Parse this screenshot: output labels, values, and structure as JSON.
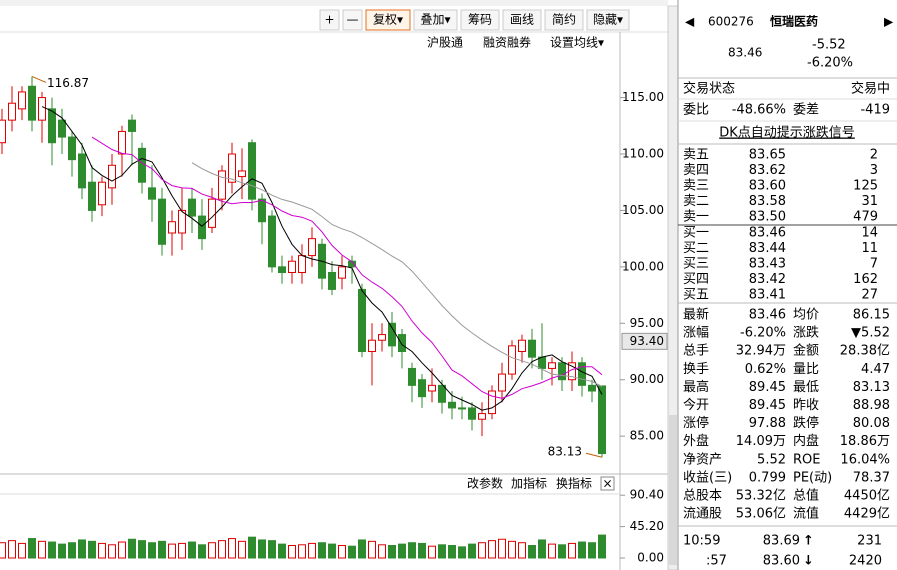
{
  "toolbar": {
    "buttons": [
      "+",
      "—",
      "复权▾",
      "叠加▾",
      "筹码",
      "画线",
      "简约",
      "隐藏▾"
    ],
    "links": [
      "沪股通",
      "融资融券",
      "设置均线▾"
    ]
  },
  "chart_data": {
    "type": "candlestick",
    "candles": {
      "open": [
        111,
        113,
        114,
        116,
        113,
        114,
        113,
        111.5,
        110,
        107.5,
        105.5,
        107,
        110,
        113,
        110.5,
        107,
        106,
        103,
        103,
        106,
        104.5,
        103.5,
        106,
        107.5,
        108,
        111,
        106,
        104.5,
        100,
        99.5,
        99.5,
        101,
        102,
        99.5,
        99,
        100.5,
        98,
        92.5,
        93.5,
        95,
        94,
        91,
        90,
        89,
        89.5,
        88,
        87.5,
        87.5,
        86.5,
        87,
        89,
        90.5,
        92.5,
        93.5,
        92,
        91,
        91.5,
        90,
        91.5,
        89.5,
        89.45
      ],
      "high": [
        114,
        116,
        116,
        116.87,
        115.5,
        115,
        114,
        112,
        111,
        109,
        108,
        110,
        112.5,
        113.5,
        111,
        109,
        107,
        105,
        107,
        107,
        106,
        107,
        109,
        111,
        110.5,
        111.3,
        106.5,
        105,
        101,
        101,
        102,
        103.5,
        102.5,
        100.5,
        101,
        101,
        98.5,
        95,
        95,
        96,
        94.5,
        91.5,
        90.5,
        91,
        90,
        89,
        88.5,
        88,
        88,
        89.5,
        91.5,
        93.5,
        94,
        94.5,
        95,
        92,
        92,
        92.5,
        92,
        90,
        89.45
      ],
      "low": [
        110,
        112,
        113,
        112,
        111,
        109,
        110,
        108,
        106,
        104,
        104.5,
        105.5,
        108,
        109,
        106.5,
        104,
        101,
        101,
        101.5,
        103,
        101.5,
        103,
        105,
        106.5,
        106,
        105,
        102,
        99.5,
        98.5,
        98.5,
        98.5,
        100,
        98,
        97.5,
        98,
        98.5,
        92,
        89.5,
        92.5,
        92,
        91,
        88,
        87.5,
        88,
        87,
        86.5,
        86.5,
        85.5,
        85,
        86.5,
        88,
        90,
        91.5,
        91,
        90,
        89.5,
        89,
        89,
        88.5,
        88,
        83.13
      ],
      "close": [
        113,
        114.5,
        115.5,
        113,
        115,
        111,
        111.5,
        109.5,
        107,
        105,
        107.5,
        109,
        112,
        112,
        107.5,
        106,
        102,
        104,
        105,
        104.5,
        102.5,
        106,
        108.5,
        110,
        108.5,
        106,
        104,
        100,
        99.5,
        100.5,
        101,
        102.5,
        99,
        98,
        100,
        100,
        92.5,
        93.5,
        94,
        93,
        92.5,
        89.5,
        88.5,
        89.5,
        88,
        87.5,
        87.5,
        86.5,
        87,
        89,
        90.5,
        93,
        93.5,
        92,
        91,
        91.5,
        90,
        91.5,
        89.5,
        89,
        83.46
      ]
    },
    "up_color": "#e00000",
    "down_color": "#2e8b2e",
    "moving_averages": [
      {
        "period": 5,
        "color": "#000000"
      },
      {
        "period": 10,
        "color": "#d000d0"
      },
      {
        "period": 20,
        "color": "#999999"
      }
    ],
    "ylim": [
      82,
      117
    ],
    "yticks": [
      {
        "value": 85,
        "label": "85.00"
      },
      {
        "value": 90,
        "label": "90.00"
      },
      {
        "value": 95,
        "label": "95.00"
      },
      {
        "value": 100,
        "label": "100.00"
      },
      {
        "value": 105,
        "label": "105.00"
      },
      {
        "value": 110,
        "label": "110.00"
      },
      {
        "value": 115,
        "label": "115.00"
      }
    ],
    "high_annotation": 116.87,
    "low_annotation": 83.13,
    "cursor": {
      "value": 93.4,
      "label": "93.40"
    }
  },
  "volume": {
    "values": [
      22,
      25,
      21,
      28,
      24,
      23,
      20,
      22,
      26,
      24,
      21,
      19,
      23,
      27,
      25,
      22,
      24,
      20,
      21,
      23,
      19,
      22,
      25,
      28,
      24,
      30,
      26,
      25,
      20,
      18,
      19,
      21,
      22,
      20,
      18,
      17,
      26,
      24,
      19,
      18,
      20,
      22,
      21,
      17,
      19,
      18,
      16,
      20,
      22,
      25,
      27,
      24,
      22,
      18,
      26,
      20,
      19,
      21,
      23,
      22,
      33
    ],
    "ylim": [
      0,
      100.8
    ],
    "yticks": [
      {
        "value": 0,
        "label": "0.00"
      },
      {
        "value": 45.2,
        "label": "45.20"
      },
      {
        "value": 90.4,
        "label": "90.40"
      }
    ],
    "buttons": [
      "改参数",
      "加指标",
      "换指标",
      "×"
    ]
  },
  "quote": {
    "code": "600276",
    "name": "恒瑞医药",
    "price": "83.46",
    "change": "-5.52",
    "change_pct": "-6.20%",
    "status_label": "交易状态",
    "status": "交易中",
    "ratio_label": "委比",
    "ratio": "-48.66%",
    "diff_label": "委差",
    "diff": "-419",
    "signal_link": "DK点自动提示涨跌信号",
    "asks": [
      {
        "label": "卖五",
        "price": "83.65",
        "volume": "2"
      },
      {
        "label": "卖四",
        "price": "83.62",
        "volume": "3"
      },
      {
        "label": "卖三",
        "price": "83.60",
        "volume": "125"
      },
      {
        "label": "卖二",
        "price": "83.58",
        "volume": "31"
      },
      {
        "label": "卖一",
        "price": "83.50",
        "volume": "479"
      }
    ],
    "bids": [
      {
        "label": "买一",
        "price": "83.46",
        "volume": "14"
      },
      {
        "label": "买二",
        "price": "83.44",
        "volume": "11"
      },
      {
        "label": "买三",
        "price": "83.43",
        "volume": "7"
      },
      {
        "label": "买四",
        "price": "83.42",
        "volume": "162"
      },
      {
        "label": "买五",
        "price": "83.41",
        "volume": "27"
      }
    ],
    "stats": [
      {
        "cells": [
          "最新",
          "83.46",
          "均价",
          "86.15"
        ],
        "colors": [
          "#008a00",
          "#000000"
        ]
      },
      {
        "cells": [
          "涨幅",
          "-6.20%",
          "涨跌",
          "▼5.52"
        ],
        "colors": [
          "#008a00",
          "#008a00"
        ]
      },
      {
        "cells": [
          "总手",
          "32.94万",
          "金额",
          "28.38亿"
        ],
        "colors": [
          "#000000",
          "#0066cc"
        ]
      },
      {
        "cells": [
          "换手",
          "0.62%",
          "量比",
          "4.47"
        ],
        "colors": [
          "#000000",
          "#e00000"
        ]
      },
      {
        "cells": [
          "最高",
          "89.45",
          "最低",
          "83.13"
        ],
        "colors": [
          "#e00000",
          "#008a00"
        ]
      },
      {
        "cells": [
          "今开",
          "89.45",
          "昨收",
          "88.98"
        ],
        "colors": [
          "#e00000",
          "#000000"
        ]
      },
      {
        "cells": [
          "涨停",
          "97.88",
          "跌停",
          "80.08"
        ],
        "colors": [
          "#e00000",
          "#008a00"
        ]
      },
      {
        "cells": [
          "外盘",
          "14.09万",
          "内盘",
          "18.86万"
        ],
        "colors": [
          "#e00000",
          "#008a00"
        ]
      },
      {
        "cells": [
          "净资产",
          "5.52",
          "ROE",
          "16.04%"
        ],
        "colors": [
          "#000000",
          "#000000"
        ]
      },
      {
        "cells": [
          "收益(三)",
          "0.799",
          "PE(动)",
          "78.37"
        ],
        "colors": [
          "#000000",
          "#000000"
        ]
      },
      {
        "cells": [
          "总股本",
          "53.32亿",
          "总值",
          "4450亿"
        ],
        "colors": [
          "#000000",
          "#000000"
        ]
      },
      {
        "cells": [
          "流通股",
          "53.06亿",
          "流值",
          "4429亿"
        ],
        "colors": [
          "#000000",
          "#000000"
        ]
      }
    ],
    "ticks": [
      {
        "time": "10:59",
        "price": "83.69",
        "arrow": "↑",
        "volume": "231",
        "arrow_color": "#e00000",
        "volume_color": "#e00000"
      },
      {
        "time": ":57",
        "price": "83.60",
        "arrow": "↓",
        "volume": "2420",
        "arrow_color": "#008a00",
        "volume_color": "#008a00"
      }
    ]
  }
}
